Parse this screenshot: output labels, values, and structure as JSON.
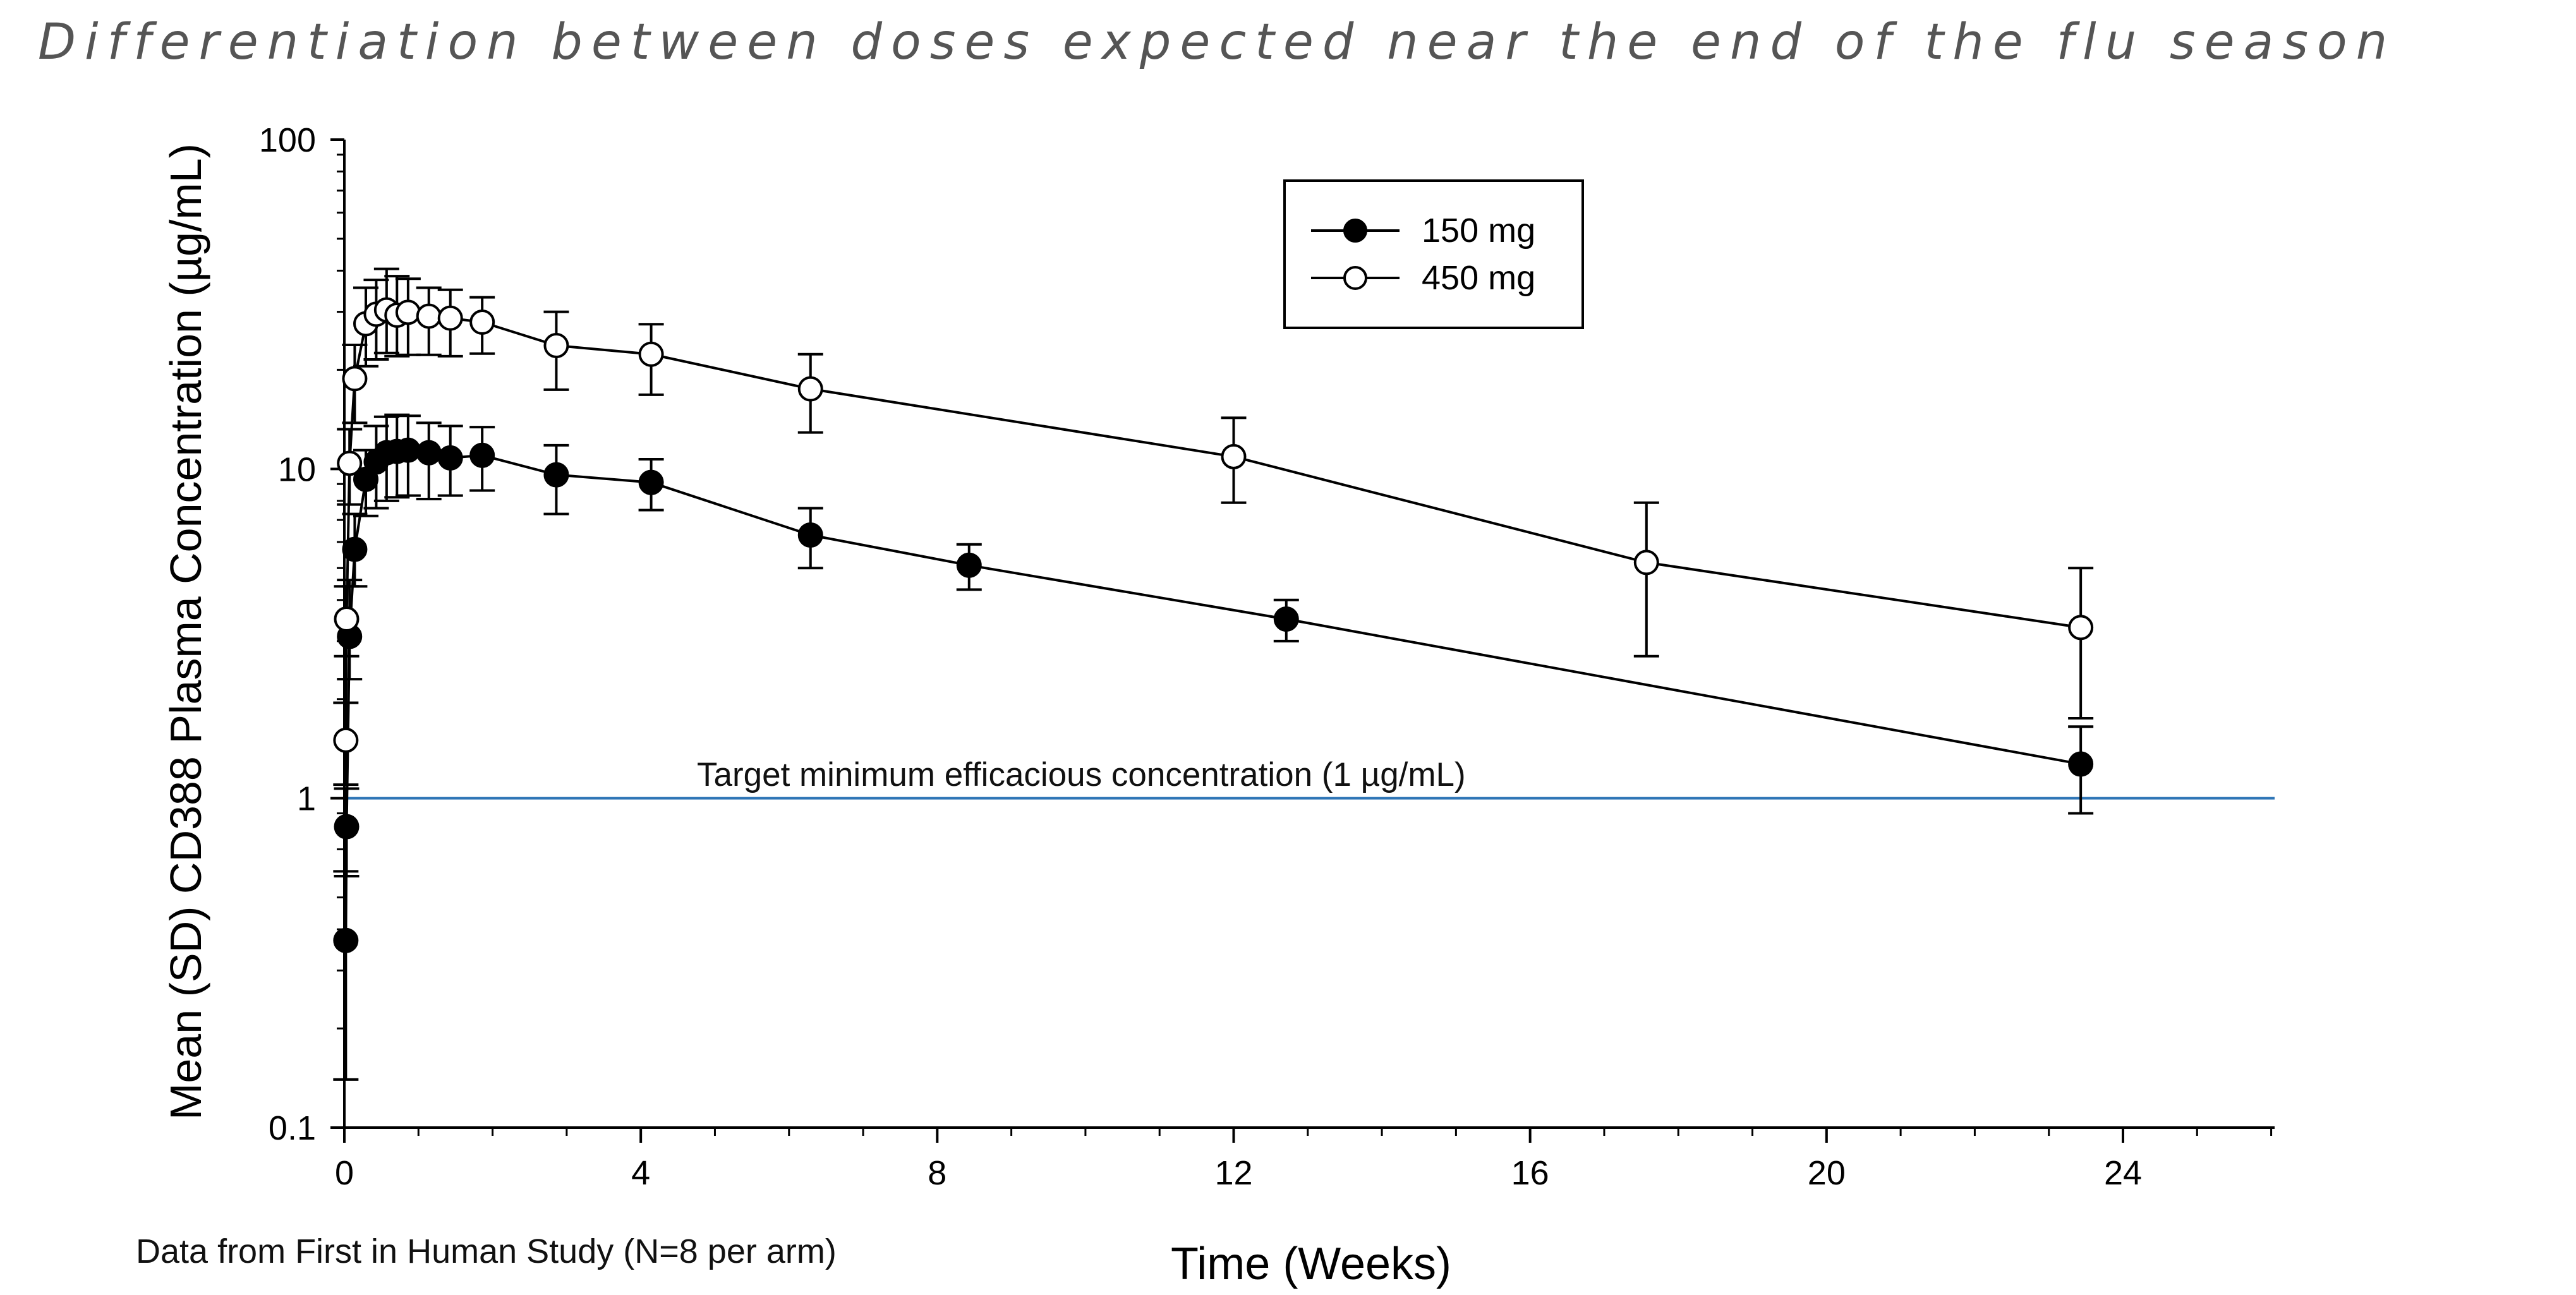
{
  "header": {
    "title": "Differentiation between doses expected near the end of the flu season"
  },
  "footer": {
    "note": "Data from First in Human Study (N=8 per arm)"
  },
  "chart_data": {
    "type": "line",
    "y_scale": "log",
    "xlabel": "Time (Weeks)",
    "ylabel": "Mean (SD) CD388 Plasma Concentration (µg/mL)",
    "xlim": [
      0,
      26
    ],
    "ylim": [
      0.1,
      100
    ],
    "x_ticks": [
      0,
      4,
      8,
      12,
      16,
      20,
      24
    ],
    "x_tick_labels": [
      "0",
      "4",
      "8",
      "12",
      "16",
      "20",
      "24"
    ],
    "x_minor_step": 1,
    "y_ticks": [
      0.1,
      1,
      10,
      100
    ],
    "y_tick_labels": [
      "0.1",
      "1",
      "10",
      "100"
    ],
    "legend_position": "top-center",
    "reference_line": {
      "y": 1,
      "label": "Target minimum efficacious concentration (1 µg/mL)",
      "color": "#2e75b6"
    },
    "series": [
      {
        "name": "150 mg",
        "marker": "filled-circle",
        "x": [
          0.02,
          0.03,
          0.07,
          0.14,
          0.29,
          0.43,
          0.57,
          0.71,
          0.86,
          1.14,
          1.43,
          1.86,
          2.86,
          4.14,
          6.29,
          8.43,
          12.71,
          23.43
        ],
        "y": [
          0.37,
          0.82,
          3.1,
          5.7,
          9.3,
          10.5,
          11.2,
          11.3,
          11.4,
          11.2,
          10.8,
          11.0,
          9.6,
          9.1,
          6.3,
          5.1,
          3.5,
          1.27
        ],
        "sd_low": [
          0.14,
          0.58,
          2.3,
          4.4,
          7.2,
          7.6,
          8.0,
          8.2,
          8.3,
          8.1,
          8.3,
          8.6,
          7.3,
          7.5,
          5.0,
          4.3,
          3.0,
          0.9
        ],
        "sd_high": [
          0.6,
          1.07,
          4.6,
          7.3,
          11.4,
          13.5,
          14.4,
          14.6,
          14.5,
          13.8,
          13.5,
          13.4,
          11.8,
          10.7,
          7.6,
          5.9,
          4.0,
          1.65
        ]
      },
      {
        "name": "450 mg",
        "marker": "open-circle",
        "x": [
          0.02,
          0.03,
          0.07,
          0.14,
          0.29,
          0.43,
          0.57,
          0.71,
          0.86,
          1.14,
          1.43,
          1.86,
          2.86,
          4.14,
          6.29,
          12.0,
          17.57,
          23.43
        ],
        "y": [
          1.5,
          3.5,
          10.4,
          18.8,
          27.6,
          29.5,
          30.4,
          29.3,
          29.9,
          29.1,
          28.7,
          27.9,
          23.7,
          22.3,
          17.5,
          10.9,
          5.2,
          3.3
        ],
        "sd_low": [
          1.1,
          2.7,
          7.8,
          13.8,
          20.5,
          21.5,
          22.5,
          22.0,
          22.2,
          22.2,
          22.0,
          22.4,
          17.4,
          16.8,
          12.9,
          7.9,
          2.7,
          1.75
        ],
        "sd_high": [
          1.95,
          4.4,
          13.2,
          23.8,
          35.5,
          37.5,
          40.5,
          38.5,
          37.8,
          35.5,
          35.0,
          33.2,
          30.0,
          27.5,
          22.3,
          14.3,
          7.9,
          5.0
        ]
      }
    ]
  }
}
